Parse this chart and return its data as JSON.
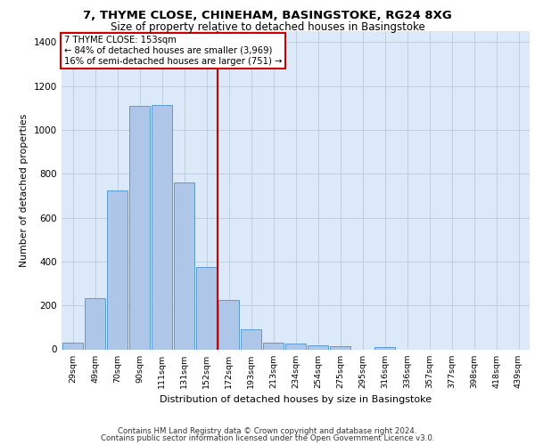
{
  "title1": "7, THYME CLOSE, CHINEHAM, BASINGSTOKE, RG24 8XG",
  "title2": "Size of property relative to detached houses in Basingstoke",
  "xlabel": "Distribution of detached houses by size in Basingstoke",
  "ylabel": "Number of detached properties",
  "footer1": "Contains HM Land Registry data © Crown copyright and database right 2024.",
  "footer2": "Contains public sector information licensed under the Open Government Licence v3.0.",
  "annotation_line1": "7 THYME CLOSE: 153sqm",
  "annotation_line2": "← 84% of detached houses are smaller (3,969)",
  "annotation_line3": "16% of semi-detached houses are larger (751) →",
  "bar_labels": [
    "29sqm",
    "49sqm",
    "70sqm",
    "90sqm",
    "111sqm",
    "131sqm",
    "152sqm",
    "172sqm",
    "193sqm",
    "213sqm",
    "234sqm",
    "254sqm",
    "275sqm",
    "295sqm",
    "316sqm",
    "336sqm",
    "357sqm",
    "377sqm",
    "398sqm",
    "418sqm",
    "439sqm"
  ],
  "bar_values": [
    30,
    235,
    725,
    1110,
    1115,
    760,
    375,
    225,
    90,
    30,
    25,
    20,
    15,
    0,
    10,
    0,
    0,
    0,
    0,
    0,
    0
  ],
  "bar_color": "#aec6e8",
  "bar_edge_color": "#5b9bd5",
  "vline_color": "#cc0000",
  "annotation_box_color": "#cc0000",
  "ylim": [
    0,
    1450
  ],
  "yticks": [
    0,
    200,
    400,
    600,
    800,
    1000,
    1200,
    1400
  ],
  "bg_color": "#dce9f8",
  "plot_bg": "#ffffff",
  "grid_color": "#c0cfe0"
}
